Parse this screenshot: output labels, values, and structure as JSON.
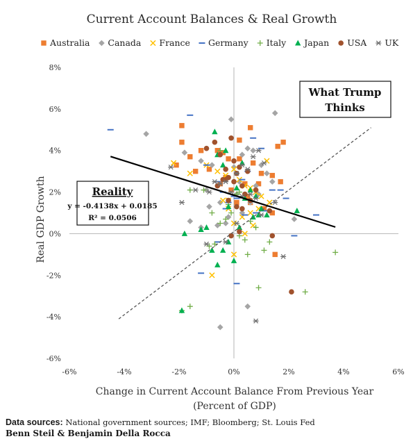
{
  "chart_data": {
    "type": "scatter",
    "title": "Current Account Balances & Real Growth",
    "xlabel_line1": "Change in Current Account Balance From Previous Year",
    "xlabel_line2": "(Percent of GDP)",
    "ylabel": "Real GDP Growth",
    "xlim": [
      -0.06,
      0.06
    ],
    "ylim": [
      -0.06,
      0.08
    ],
    "x_ticks": [
      {
        "value": -0.06,
        "label": "-6%"
      },
      {
        "value": -0.04,
        "label": "-4%"
      },
      {
        "value": -0.02,
        "label": "-2%"
      },
      {
        "value": 0,
        "label": "0%"
      },
      {
        "value": 0.02,
        "label": "2%"
      },
      {
        "value": 0.04,
        "label": "4%"
      },
      {
        "value": 0.06,
        "label": "6%"
      }
    ],
    "y_ticks": [
      {
        "value": -0.06,
        "label": "-6%"
      },
      {
        "value": -0.04,
        "label": "-4%"
      },
      {
        "value": -0.02,
        "label": "-2%"
      },
      {
        "value": 0,
        "label": "0%"
      },
      {
        "value": 0.02,
        "label": "2%"
      },
      {
        "value": 0.04,
        "label": "4%"
      },
      {
        "value": 0.06,
        "label": "6%"
      },
      {
        "value": 0.08,
        "label": "8%"
      }
    ],
    "grid": false,
    "legend_position": "top",
    "series": [
      {
        "name": "Australia",
        "marker": "square",
        "color": "#ED7D31",
        "points": [
          [
            -0.019,
            0.052
          ],
          [
            -0.019,
            0.044
          ],
          [
            -0.016,
            0.037
          ],
          [
            -0.012,
            0.04
          ],
          [
            -0.014,
            0.03
          ],
          [
            -0.009,
            0.031
          ],
          [
            -0.006,
            0.04
          ],
          [
            -0.004,
            0.039
          ],
          [
            -0.002,
            0.036
          ],
          [
            0.002,
            0.045
          ],
          [
            0.002,
            0.036
          ],
          [
            0.006,
            0.051
          ],
          [
            0.007,
            0.034
          ],
          [
            0.004,
            0.024
          ],
          [
            0.009,
            0.024
          ],
          [
            0.014,
            0.028
          ],
          [
            0.016,
            0.042
          ],
          [
            0.018,
            0.044
          ],
          [
            0.017,
            0.025
          ],
          [
            0.006,
            0.015
          ],
          [
            0.011,
            0.012
          ],
          [
            0.014,
            0.01
          ],
          [
            0.015,
            -0.01
          ],
          [
            -0.005,
            0.024
          ],
          [
            -0.003,
            0.027
          ],
          [
            0.005,
            0.018
          ],
          [
            -0.001,
            0.021
          ],
          [
            0.001,
            0.015
          ],
          [
            -0.021,
            0.033
          ],
          [
            0.01,
            0.029
          ]
        ]
      },
      {
        "name": "Canada",
        "marker": "diamond",
        "color": "#A5A5A5",
        "points": [
          [
            -0.032,
            0.048
          ],
          [
            -0.018,
            0.039
          ],
          [
            -0.012,
            0.035
          ],
          [
            -0.008,
            0.033
          ],
          [
            -0.001,
            0.055
          ],
          [
            0.003,
            0.038
          ],
          [
            0.005,
            0.041
          ],
          [
            0.007,
            0.04
          ],
          [
            0.01,
            0.033
          ],
          [
            0.012,
            0.029
          ],
          [
            0.015,
            0.058
          ],
          [
            0.014,
            0.025
          ],
          [
            0.009,
            0.019
          ],
          [
            0.006,
            0.015
          ],
          [
            0.003,
            0.01
          ],
          [
            -0.002,
            0.008
          ],
          [
            -0.006,
            0.004
          ],
          [
            -0.012,
            0.003
          ],
          [
            -0.016,
            0.006
          ],
          [
            -0.009,
            0.013
          ],
          [
            -0.005,
            0.015
          ],
          [
            0.002,
            0.025
          ],
          [
            0.0,
            0.032
          ],
          [
            0.008,
            0.023
          ],
          [
            0.022,
            0.007
          ],
          [
            -0.005,
            -0.045
          ],
          [
            0.005,
            -0.035
          ],
          [
            -0.003,
            0.005
          ],
          [
            0.001,
            0.019
          ],
          [
            -0.01,
            0.021
          ]
        ]
      },
      {
        "name": "France",
        "marker": "x",
        "color": "#FFC000",
        "points": [
          [
            -0.022,
            0.034
          ],
          [
            -0.016,
            0.029
          ],
          [
            -0.01,
            0.033
          ],
          [
            -0.006,
            0.03
          ],
          [
            -0.003,
            0.028
          ],
          [
            0.0,
            0.031
          ],
          [
            0.002,
            0.026
          ],
          [
            0.004,
            0.023
          ],
          [
            0.006,
            0.022
          ],
          [
            0.008,
            0.02
          ],
          [
            0.01,
            0.018
          ],
          [
            0.012,
            0.035
          ],
          [
            0.009,
            0.012
          ],
          [
            0.006,
            0.01
          ],
          [
            0.003,
            0.008
          ],
          [
            0.0,
            0.005
          ],
          [
            -0.002,
            0.012
          ],
          [
            -0.004,
            0.016
          ],
          [
            -0.008,
            -0.02
          ],
          [
            0.0,
            -0.01
          ],
          [
            0.004,
            0.0
          ],
          [
            0.007,
            0.004
          ],
          [
            -0.002,
            0.016
          ],
          [
            0.013,
            0.015
          ]
        ]
      },
      {
        "name": "Germany",
        "marker": "dash",
        "color": "#4472C4",
        "points": [
          [
            -0.045,
            0.05
          ],
          [
            -0.016,
            0.057
          ],
          [
            -0.01,
            0.033
          ],
          [
            -0.006,
            0.025
          ],
          [
            -0.004,
            0.02
          ],
          [
            -0.002,
            0.015
          ],
          [
            0.0,
            0.018
          ],
          [
            0.003,
            0.026
          ],
          [
            0.007,
            0.046
          ],
          [
            0.01,
            0.041
          ],
          [
            0.014,
            0.021
          ],
          [
            0.017,
            0.021
          ],
          [
            0.019,
            0.017
          ],
          [
            0.011,
            0.011
          ],
          [
            0.008,
            0.01
          ],
          [
            0.004,
            0.009
          ],
          [
            0.001,
            0.017
          ],
          [
            -0.003,
            0.012
          ],
          [
            -0.006,
            -0.004
          ],
          [
            0.001,
            -0.024
          ],
          [
            -0.012,
            -0.019
          ],
          [
            0.03,
            0.009
          ],
          [
            0.022,
            -0.001
          ],
          [
            0.005,
            0.03
          ]
        ]
      },
      {
        "name": "Italy",
        "marker": "plus",
        "color": "#70AD47",
        "points": [
          [
            -0.019,
            -0.037
          ],
          [
            -0.016,
            -0.035
          ],
          [
            -0.016,
            0.021
          ],
          [
            -0.011,
            0.021
          ],
          [
            -0.009,
            -0.006
          ],
          [
            -0.007,
            -0.005
          ],
          [
            -0.005,
            0.005
          ],
          [
            -0.003,
            0.007
          ],
          [
            -0.001,
            0.01
          ],
          [
            0.002,
            -0.001
          ],
          [
            0.004,
            -0.003
          ],
          [
            0.005,
            -0.01
          ],
          [
            0.008,
            0.003
          ],
          [
            0.011,
            -0.008
          ],
          [
            0.013,
            -0.004
          ],
          [
            0.009,
            -0.026
          ],
          [
            0.026,
            -0.028
          ],
          [
            0.037,
            -0.009
          ],
          [
            -0.008,
            0.01
          ],
          [
            -0.002,
            0.014
          ],
          [
            0.002,
            0.02
          ],
          [
            0.006,
            0.006
          ],
          [
            -0.005,
            0.04
          ],
          [
            0.001,
            0.019
          ]
        ]
      },
      {
        "name": "Japan",
        "marker": "triangle",
        "color": "#00B050",
        "points": [
          [
            -0.019,
            -0.037
          ],
          [
            -0.018,
            0.0
          ],
          [
            -0.012,
            0.002
          ],
          [
            -0.01,
            0.003
          ],
          [
            -0.008,
            -0.008
          ],
          [
            -0.006,
            -0.015
          ],
          [
            -0.004,
            -0.008
          ],
          [
            -0.002,
            -0.004
          ],
          [
            0.0,
            -0.013
          ],
          [
            0.002,
            0.003
          ],
          [
            0.004,
            0.017
          ],
          [
            0.006,
            0.021
          ],
          [
            0.007,
            0.008
          ],
          [
            0.008,
            0.018
          ],
          [
            0.009,
            0.009
          ],
          [
            0.01,
            0.012
          ],
          [
            0.012,
            0.009
          ],
          [
            0.003,
            0.034
          ],
          [
            -0.003,
            0.04
          ],
          [
            -0.007,
            0.049
          ],
          [
            -0.006,
            0.038
          ],
          [
            -0.004,
            0.033
          ],
          [
            0.001,
            0.022
          ],
          [
            0.023,
            0.011
          ],
          [
            -0.002,
            0.013
          ]
        ]
      },
      {
        "name": "USA",
        "marker": "circle",
        "color": "#A0522D",
        "points": [
          [
            -0.01,
            0.041
          ],
          [
            -0.007,
            0.044
          ],
          [
            -0.005,
            0.038
          ],
          [
            -0.003,
            0.031
          ],
          [
            -0.002,
            0.027
          ],
          [
            0.0,
            0.025
          ],
          [
            0.001,
            0.029
          ],
          [
            0.003,
            0.023
          ],
          [
            0.004,
            0.019
          ],
          [
            0.002,
            0.032
          ],
          [
            -0.001,
            0.046
          ],
          [
            0.0,
            0.035
          ],
          [
            -0.004,
            0.026
          ],
          [
            -0.006,
            0.023
          ],
          [
            0.005,
            0.03
          ],
          [
            0.008,
            0.021
          ],
          [
            0.006,
            0.016
          ],
          [
            0.003,
            0.012
          ],
          [
            0.001,
            0.013
          ],
          [
            -0.002,
            0.016
          ],
          [
            0.013,
            0.011
          ],
          [
            0.014,
            -0.001
          ],
          [
            0.021,
            -0.028
          ],
          [
            -0.001,
            -0.001
          ],
          [
            0.002,
            0.001
          ],
          [
            -0.003,
            0.026
          ]
        ]
      },
      {
        "name": "UK",
        "marker": "asterisk",
        "color": "#6F6F6F",
        "points": [
          [
            -0.023,
            0.032
          ],
          [
            -0.019,
            0.015
          ],
          [
            -0.014,
            0.021
          ],
          [
            -0.009,
            0.02
          ],
          [
            -0.007,
            0.025
          ],
          [
            -0.005,
            0.024
          ],
          [
            -0.003,
            0.025
          ],
          [
            -0.001,
            0.02
          ],
          [
            0.001,
            0.029
          ],
          [
            0.003,
            0.033
          ],
          [
            0.005,
            0.031
          ],
          [
            0.007,
            0.037
          ],
          [
            0.009,
            0.04
          ],
          [
            0.011,
            0.034
          ],
          [
            0.006,
            0.019
          ],
          [
            0.003,
            0.018
          ],
          [
            0.008,
            0.017
          ],
          [
            0.01,
            0.009
          ],
          [
            0.015,
            0.015
          ],
          [
            0.018,
            -0.011
          ],
          [
            -0.003,
            -0.004
          ],
          [
            -0.01,
            -0.005
          ],
          [
            0.008,
            -0.042
          ],
          [
            0.001,
            0.005
          ]
        ]
      }
    ],
    "regression_line": {
      "slope": -0.4138,
      "intercept": 0.0185,
      "x_range": [
        -0.045,
        0.037
      ]
    },
    "what_trump_thinks_line": {
      "x_from": -0.042,
      "y_from": -0.041,
      "x_to": 0.05,
      "y_to": 0.051
    },
    "annotations": {
      "trump_line1": "What Trump",
      "trump_line2": "Thinks",
      "reality_title": "Reality",
      "reality_equation": "y = -0.4138x + 0.0185",
      "reality_r2": "R² = 0.0506"
    }
  },
  "footer": {
    "sources_lead": "Data sources:",
    "sources_body": " National government sources; IMF; Bloomberg; St. Louis Fed",
    "authors": "Benn Steil & Benjamin Della Rocca"
  }
}
